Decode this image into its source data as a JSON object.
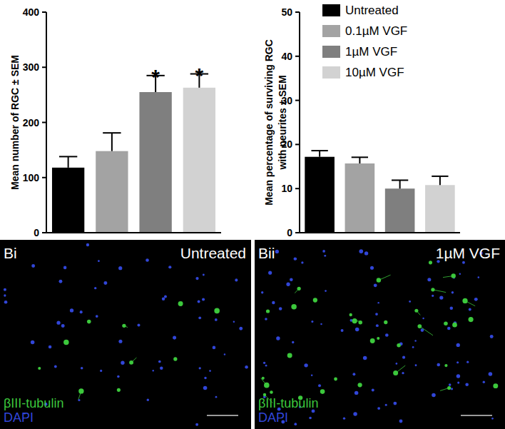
{
  "chart_data": [
    {
      "type": "bar",
      "categories": [
        "Untreated",
        "0.1µM VGF",
        "1µM VGF",
        "10µM VGF"
      ],
      "values": [
        118,
        148,
        255,
        263
      ],
      "errors": [
        20,
        33,
        30,
        25
      ],
      "colors": [
        "#000000",
        "#a3a3a3",
        "#7f7f7f",
        "#d2d2d2"
      ],
      "ylabel": [
        "Mean number of RGC ± SEM"
      ],
      "ylim": [
        0,
        400
      ],
      "yticks": [
        0,
        100,
        200,
        300,
        400
      ],
      "tick_labels": "y",
      "annotations": [
        {
          "text": "*",
          "category": "1µM VGF"
        },
        {
          "text": "*",
          "category": "10µM VGF"
        }
      ]
    },
    {
      "type": "bar",
      "categories": [
        "Untreated",
        "0.1µM VGF",
        "1µM VGF",
        "10µM VGF"
      ],
      "values": [
        17.2,
        15.7,
        10.0,
        10.8
      ],
      "errors": [
        1.4,
        1.4,
        1.9,
        2.0
      ],
      "colors": [
        "#000000",
        "#a3a3a3",
        "#7f7f7f",
        "#d2d2d2"
      ],
      "ylabel": [
        "Mean percentage of surviving RGC",
        "with neurites ± SEM"
      ],
      "ylim": [
        0,
        50
      ],
      "yticks": [
        0,
        10,
        20,
        30,
        40,
        50
      ],
      "tick_labels": "y",
      "legend": "top-right"
    }
  ],
  "panels": [
    {
      "label": "Bi",
      "condition": "Untreated",
      "stains": [
        {
          "text": "βIII-tubulin",
          "color": "#3cc83c"
        },
        {
          "text": "DAPI",
          "color": "#3146d8"
        }
      ]
    },
    {
      "label": "Bii",
      "condition": "1µM VGF",
      "stains": [
        {
          "text": "βIII-tubulin",
          "color": "#3cc83c"
        },
        {
          "text": "DAPI",
          "color": "#3146d8"
        }
      ]
    }
  ]
}
